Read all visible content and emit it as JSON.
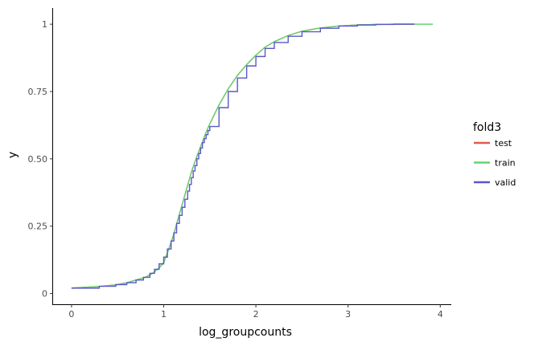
{
  "chart_data": {
    "type": "line",
    "title": "",
    "xlabel": "log_groupcounts",
    "ylabel": "y",
    "xlim": [
      -0.2,
      4.12
    ],
    "ylim": [
      -0.04,
      1.06
    ],
    "x_ticks": [
      0,
      1,
      2,
      3,
      4
    ],
    "x_tick_labels": [
      "0",
      "1",
      "2",
      "3",
      "4"
    ],
    "y_ticks": [
      0,
      0.25,
      0.5,
      0.75,
      1
    ],
    "y_tick_labels": [
      "0",
      "0.25",
      "0.50",
      "0.75",
      "1"
    ],
    "grid": false,
    "legend": {
      "title": "fold3",
      "position": "right"
    },
    "series": [
      {
        "name": "test",
        "color": "#e05a4e",
        "step": false,
        "x": [
          0.0,
          0.3,
          0.48,
          0.6,
          0.7,
          0.8,
          0.88,
          0.95,
          1.0,
          1.05,
          1.1,
          1.15,
          1.2,
          1.25,
          1.3,
          1.35,
          1.4,
          1.45,
          1.5,
          1.6,
          1.7,
          1.8,
          1.9,
          2.0,
          2.1,
          2.2,
          2.35,
          2.5,
          2.7,
          2.9,
          3.1,
          3.3,
          3.5,
          3.72
        ],
        "y": [
          0.02,
          0.026,
          0.032,
          0.04,
          0.05,
          0.06,
          0.075,
          0.095,
          0.115,
          0.16,
          0.21,
          0.27,
          0.33,
          0.39,
          0.45,
          0.5,
          0.545,
          0.59,
          0.63,
          0.7,
          0.76,
          0.81,
          0.85,
          0.885,
          0.915,
          0.935,
          0.958,
          0.974,
          0.986,
          0.993,
          0.997,
          0.999,
          1.0,
          1.0
        ]
      },
      {
        "name": "train",
        "color": "#62d370",
        "step": false,
        "x": [
          0.0,
          0.3,
          0.48,
          0.6,
          0.7,
          0.8,
          0.88,
          0.95,
          1.0,
          1.05,
          1.1,
          1.15,
          1.2,
          1.25,
          1.3,
          1.35,
          1.4,
          1.45,
          1.5,
          1.6,
          1.7,
          1.8,
          1.9,
          2.0,
          2.1,
          2.2,
          2.35,
          2.5,
          2.7,
          2.9,
          3.1,
          3.3,
          3.5,
          3.72,
          3.92
        ],
        "y": [
          0.02,
          0.026,
          0.032,
          0.04,
          0.05,
          0.06,
          0.075,
          0.095,
          0.115,
          0.16,
          0.21,
          0.27,
          0.33,
          0.39,
          0.45,
          0.5,
          0.545,
          0.59,
          0.63,
          0.7,
          0.76,
          0.81,
          0.85,
          0.885,
          0.915,
          0.935,
          0.958,
          0.974,
          0.986,
          0.993,
          0.997,
          0.999,
          1.0,
          1.0,
          1.0
        ]
      },
      {
        "name": "valid",
        "color": "#5a58c8",
        "step": true,
        "x": [
          0.0,
          0.3,
          0.48,
          0.6,
          0.7,
          0.78,
          0.85,
          0.9,
          0.95,
          1.0,
          1.04,
          1.08,
          1.11,
          1.14,
          1.17,
          1.2,
          1.23,
          1.26,
          1.28,
          1.3,
          1.32,
          1.34,
          1.36,
          1.38,
          1.4,
          1.42,
          1.44,
          1.46,
          1.48,
          1.5,
          1.6,
          1.7,
          1.8,
          1.9,
          2.0,
          2.1,
          2.2,
          2.35,
          2.5,
          2.7,
          2.9,
          3.1,
          3.3,
          3.5,
          3.72
        ],
        "y": [
          0.02,
          0.027,
          0.033,
          0.04,
          0.05,
          0.06,
          0.075,
          0.09,
          0.11,
          0.135,
          0.165,
          0.195,
          0.225,
          0.26,
          0.29,
          0.32,
          0.35,
          0.38,
          0.405,
          0.43,
          0.455,
          0.475,
          0.5,
          0.52,
          0.54,
          0.56,
          0.575,
          0.59,
          0.605,
          0.62,
          0.69,
          0.75,
          0.8,
          0.845,
          0.88,
          0.91,
          0.932,
          0.955,
          0.972,
          0.985,
          0.993,
          0.997,
          0.999,
          1.0,
          1.0
        ]
      }
    ]
  }
}
